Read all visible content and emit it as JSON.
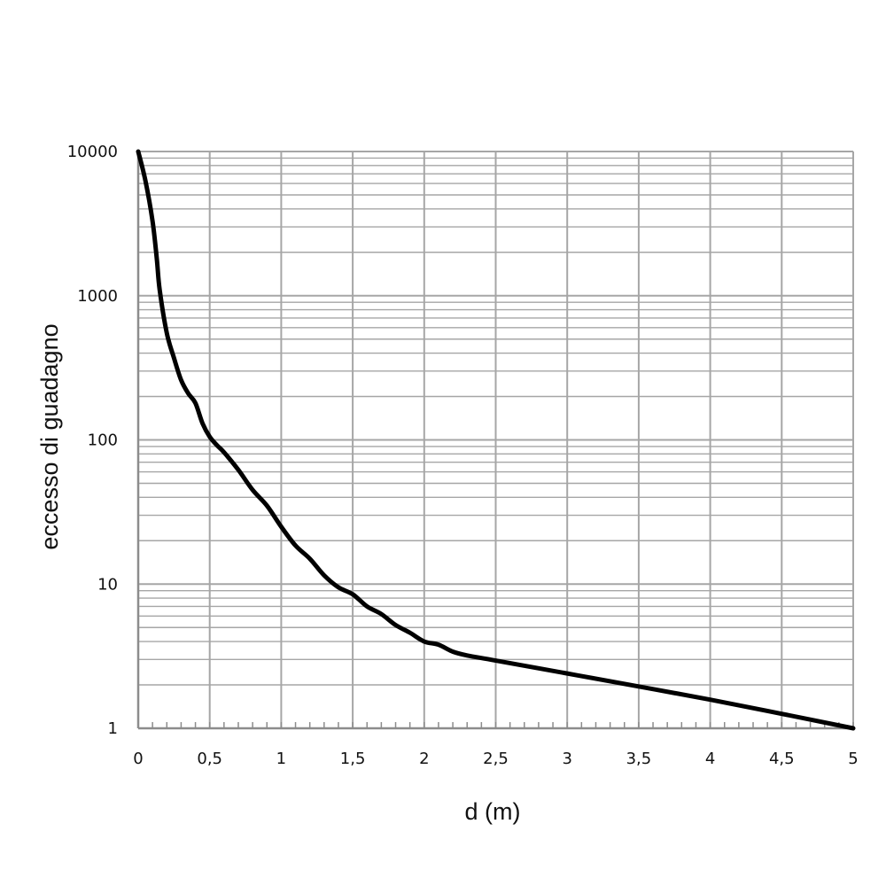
{
  "chart_data": {
    "type": "line",
    "title": "",
    "xlabel": "d (m)",
    "ylabel": "eccesso di guadagno",
    "xlim": [
      0,
      5
    ],
    "ylim": [
      1,
      10000
    ],
    "y_scale": "log",
    "grid": true,
    "x_ticks": [
      0,
      0.5,
      1,
      1.5,
      2,
      2.5,
      3,
      3.5,
      4,
      4.5,
      5
    ],
    "x_tick_labels": [
      "0",
      "0,5",
      "1",
      "1,5",
      "2",
      "2,5",
      "3",
      "3,5",
      "4",
      "4,5",
      "5"
    ],
    "y_ticks": [
      1,
      10,
      100,
      1000,
      10000
    ],
    "y_tick_labels": [
      "1",
      "10",
      "100",
      "1000",
      "10000"
    ],
    "line_color": "#000000",
    "grid_color": "#a6a6a6",
    "series": [
      {
        "x": [
          0,
          0.05,
          0.1,
          0.13,
          0.15,
          0.2,
          0.25,
          0.3,
          0.35,
          0.4,
          0.45,
          0.5,
          0.55,
          0.6,
          0.7,
          0.8,
          0.9,
          1.0,
          1.1,
          1.2,
          1.3,
          1.4,
          1.5,
          1.6,
          1.7,
          1.8,
          1.9,
          2.0,
          2.1,
          2.2,
          2.3,
          2.5,
          3.0,
          3.5,
          4.0,
          4.5,
          5.0
        ],
        "y": [
          10000,
          6300,
          3300,
          1800,
          1100,
          550,
          370,
          260,
          210,
          180,
          130,
          105,
          92,
          82,
          62,
          45,
          35,
          25,
          18.5,
          15,
          11.5,
          9.5,
          8.5,
          7,
          6.2,
          5.2,
          4.6,
          4.0,
          3.8,
          3.4,
          3.2,
          2.95,
          2.4,
          1.95,
          1.58,
          1.26,
          1.0
        ]
      }
    ]
  }
}
